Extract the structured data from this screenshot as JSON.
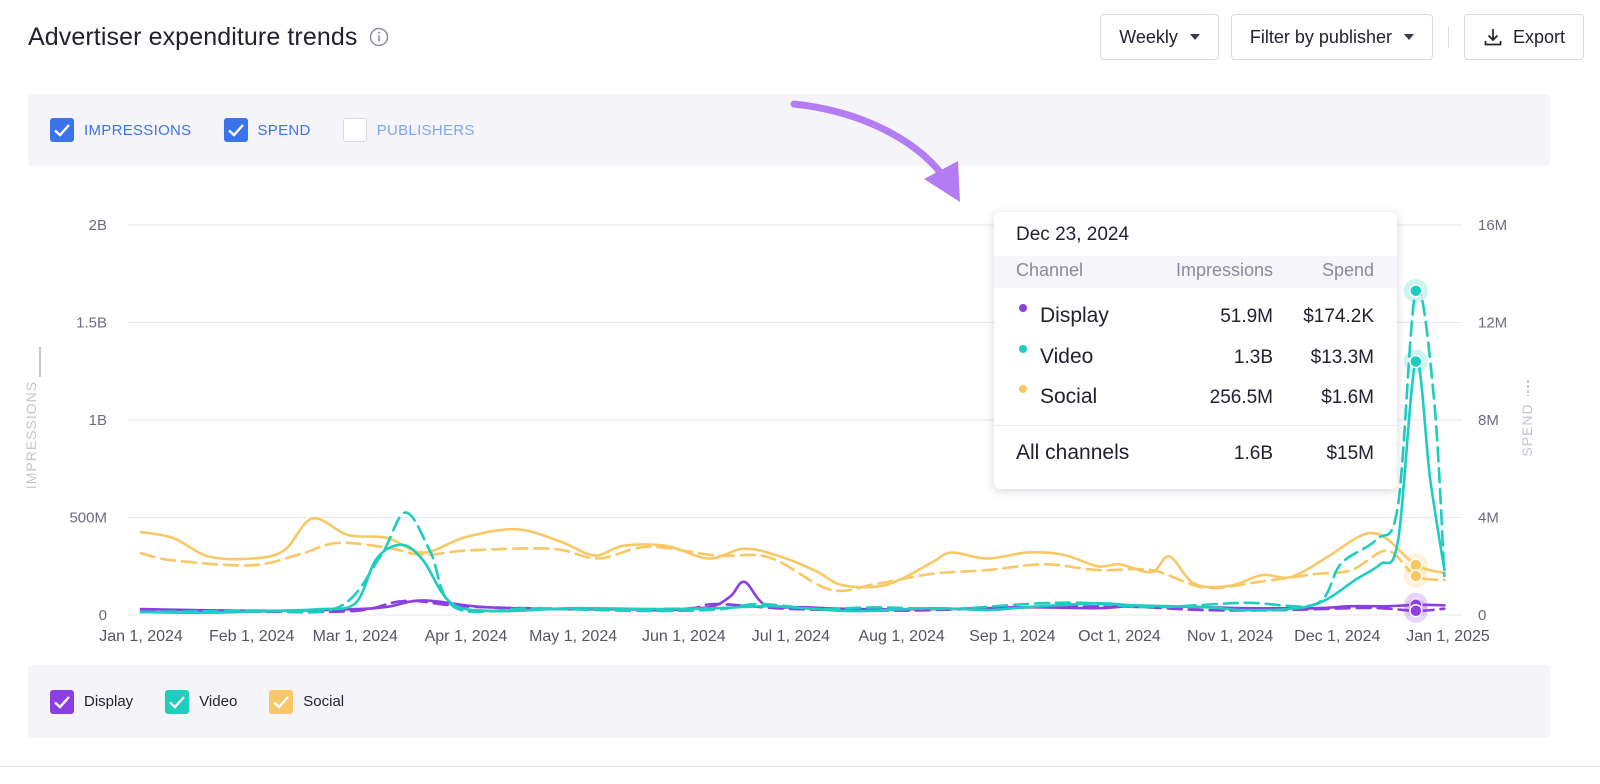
{
  "header": {
    "title": "Advertiser expenditure trends",
    "interval": "Weekly",
    "filter": "Filter by publisher",
    "export": "Export"
  },
  "toggles": [
    {
      "label": "IMPRESSIONS",
      "checked": true,
      "color": "#3b73e8"
    },
    {
      "label": "SPEND",
      "checked": true,
      "color": "#3b73e8"
    },
    {
      "label": "PUBLISHERS",
      "checked": false,
      "color": "#7ea6ee"
    }
  ],
  "legend": [
    {
      "label": "Display",
      "color": "#8c3fe0"
    },
    {
      "label": "Video",
      "color": "#1ccdc0"
    },
    {
      "label": "Social",
      "color": "#f8c866"
    }
  ],
  "tooltip": {
    "date": "Dec 23, 2024",
    "col_channel": "Channel",
    "col_impressions": "Impressions",
    "col_spend": "Spend",
    "rows": [
      {
        "channel": "Display",
        "impressions": "51.9M",
        "spend": "$174.2K",
        "color": "#8c3fe0"
      },
      {
        "channel": "Video",
        "impressions": "1.3B",
        "spend": "$13.3M",
        "color": "#1ccdc0"
      },
      {
        "channel": "Social",
        "impressions": "256.5M",
        "spend": "$1.6M",
        "color": "#f8c866"
      }
    ],
    "total": {
      "channel": "All channels",
      "impressions": "1.6B",
      "spend": "$15M"
    }
  },
  "chart_data": {
    "type": "line",
    "x_range": [
      "2024-01-01",
      "2025-01-01"
    ],
    "x_ticks": [
      "Jan 1, 2024",
      "Feb 1, 2024",
      "Mar 1, 2024",
      "Apr 1, 2024",
      "May 1, 2024",
      "Jun 1, 2024",
      "Jul 1, 2024",
      "Aug 1, 2024",
      "Sep 1, 2024",
      "Oct 1, 2024",
      "Nov 1, 2024",
      "Dec 1, 2024",
      "Jan 1, 2025"
    ],
    "y_left": {
      "label": "IMPRESSIONS",
      "range": [
        0,
        2000000000
      ],
      "ticks": [
        "0",
        "500M",
        "1B",
        "1.5B",
        "2B"
      ]
    },
    "y_right": {
      "label": "SPEND",
      "range": [
        0,
        16000000
      ],
      "ticks": [
        "0",
        "4M",
        "8M",
        "12M",
        "16M"
      ]
    },
    "grid": true,
    "highlight_date": "2024-12-23",
    "series": [
      {
        "name": "Display",
        "metric": "impressions",
        "style": "solid",
        "color": "#8c3fe0",
        "points": [
          [
            "2024-01-01",
            30000000
          ],
          [
            "2024-01-20",
            24000000
          ],
          [
            "2024-02-10",
            22000000
          ],
          [
            "2024-03-01",
            30000000
          ],
          [
            "2024-03-10",
            42000000
          ],
          [
            "2024-03-20",
            75000000
          ],
          [
            "2024-04-05",
            42000000
          ],
          [
            "2024-04-25",
            30000000
          ],
          [
            "2024-05-15",
            30000000
          ],
          [
            "2024-05-25",
            24000000
          ],
          [
            "2024-06-08",
            40000000
          ],
          [
            "2024-06-14",
            95000000
          ],
          [
            "2024-06-18",
            170000000
          ],
          [
            "2024-06-24",
            50000000
          ],
          [
            "2024-07-05",
            40000000
          ],
          [
            "2024-07-20",
            30000000
          ],
          [
            "2024-08-10",
            30000000
          ],
          [
            "2024-08-25",
            35000000
          ],
          [
            "2024-09-05",
            40000000
          ],
          [
            "2024-09-25",
            35000000
          ],
          [
            "2024-10-05",
            45000000
          ],
          [
            "2024-10-25",
            40000000
          ],
          [
            "2024-11-05",
            35000000
          ],
          [
            "2024-11-25",
            35000000
          ],
          [
            "2024-12-05",
            45000000
          ],
          [
            "2024-12-15",
            45000000
          ],
          [
            "2024-12-23",
            51900000
          ],
          [
            "2024-12-31",
            50000000
          ]
        ]
      },
      {
        "name": "Video",
        "metric": "impressions",
        "style": "solid",
        "color": "#1ccdc0",
        "points": [
          [
            "2024-01-01",
            15000000
          ],
          [
            "2024-01-20",
            12000000
          ],
          [
            "2024-02-10",
            22000000
          ],
          [
            "2024-02-20",
            30000000
          ],
          [
            "2024-03-01",
            60000000
          ],
          [
            "2024-03-07",
            290000000
          ],
          [
            "2024-03-14",
            360000000
          ],
          [
            "2024-03-20",
            280000000
          ],
          [
            "2024-03-28",
            60000000
          ],
          [
            "2024-04-10",
            20000000
          ],
          [
            "2024-05-01",
            35000000
          ],
          [
            "2024-05-25",
            30000000
          ],
          [
            "2024-06-10",
            35000000
          ],
          [
            "2024-06-25",
            45000000
          ],
          [
            "2024-07-08",
            30000000
          ],
          [
            "2024-07-20",
            20000000
          ],
          [
            "2024-08-10",
            35000000
          ],
          [
            "2024-08-25",
            25000000
          ],
          [
            "2024-09-05",
            40000000
          ],
          [
            "2024-09-25",
            60000000
          ],
          [
            "2024-10-05",
            50000000
          ],
          [
            "2024-10-25",
            40000000
          ],
          [
            "2024-11-05",
            25000000
          ],
          [
            "2024-11-20",
            35000000
          ],
          [
            "2024-11-28",
            80000000
          ],
          [
            "2024-12-06",
            180000000
          ],
          [
            "2024-12-13",
            260000000
          ],
          [
            "2024-12-18",
            380000000
          ],
          [
            "2024-12-23",
            1300000000
          ],
          [
            "2024-12-27",
            700000000
          ],
          [
            "2024-12-31",
            230000000
          ]
        ]
      },
      {
        "name": "Social",
        "metric": "impressions",
        "style": "solid",
        "color": "#f8c866",
        "points": [
          [
            "2024-01-01",
            425000000
          ],
          [
            "2024-01-10",
            395000000
          ],
          [
            "2024-01-20",
            300000000
          ],
          [
            "2024-02-01",
            290000000
          ],
          [
            "2024-02-10",
            330000000
          ],
          [
            "2024-02-18",
            495000000
          ],
          [
            "2024-02-28",
            410000000
          ],
          [
            "2024-03-10",
            395000000
          ],
          [
            "2024-03-20",
            320000000
          ],
          [
            "2024-04-01",
            400000000
          ],
          [
            "2024-04-15",
            440000000
          ],
          [
            "2024-04-27",
            380000000
          ],
          [
            "2024-05-07",
            305000000
          ],
          [
            "2024-05-15",
            355000000
          ],
          [
            "2024-05-27",
            355000000
          ],
          [
            "2024-06-08",
            290000000
          ],
          [
            "2024-06-18",
            340000000
          ],
          [
            "2024-06-28",
            300000000
          ],
          [
            "2024-07-08",
            225000000
          ],
          [
            "2024-07-15",
            155000000
          ],
          [
            "2024-07-25",
            145000000
          ],
          [
            "2024-08-01",
            185000000
          ],
          [
            "2024-08-10",
            275000000
          ],
          [
            "2024-08-15",
            320000000
          ],
          [
            "2024-08-25",
            290000000
          ],
          [
            "2024-09-05",
            320000000
          ],
          [
            "2024-09-15",
            310000000
          ],
          [
            "2024-09-25",
            250000000
          ],
          [
            "2024-10-01",
            260000000
          ],
          [
            "2024-10-10",
            220000000
          ],
          [
            "2024-10-15",
            300000000
          ],
          [
            "2024-10-22",
            160000000
          ],
          [
            "2024-11-01",
            150000000
          ],
          [
            "2024-11-10",
            205000000
          ],
          [
            "2024-11-18",
            195000000
          ],
          [
            "2024-11-28",
            295000000
          ],
          [
            "2024-12-05",
            380000000
          ],
          [
            "2024-12-10",
            420000000
          ],
          [
            "2024-12-15",
            390000000
          ],
          [
            "2024-12-23",
            256500000
          ],
          [
            "2024-12-31",
            215000000
          ]
        ]
      },
      {
        "name": "Display",
        "metric": "spend",
        "style": "dashed",
        "color": "#8c3fe0",
        "points": [
          [
            "2024-01-01",
            140000
          ],
          [
            "2024-02-01",
            130000
          ],
          [
            "2024-03-01",
            170000
          ],
          [
            "2024-03-15",
            580000
          ],
          [
            "2024-04-01",
            350000
          ],
          [
            "2024-05-01",
            250000
          ],
          [
            "2024-06-01",
            260000
          ],
          [
            "2024-06-10",
            450000
          ],
          [
            "2024-07-01",
            250000
          ],
          [
            "2024-08-01",
            180000
          ],
          [
            "2024-09-01",
            300000
          ],
          [
            "2024-10-01",
            350000
          ],
          [
            "2024-10-25",
            200000
          ],
          [
            "2024-11-15",
            200000
          ],
          [
            "2024-12-10",
            290000
          ],
          [
            "2024-12-23",
            174200
          ],
          [
            "2024-12-31",
            260000
          ]
        ]
      },
      {
        "name": "Video",
        "metric": "spend",
        "style": "dashed",
        "color": "#1ccdc0",
        "points": [
          [
            "2024-01-01",
            120000
          ],
          [
            "2024-02-01",
            180000
          ],
          [
            "2024-02-25",
            300000
          ],
          [
            "2024-03-08",
            2400000
          ],
          [
            "2024-03-15",
            4200000
          ],
          [
            "2024-03-22",
            2600000
          ],
          [
            "2024-03-29",
            300000
          ],
          [
            "2024-04-20",
            270000
          ],
          [
            "2024-05-20",
            170000
          ],
          [
            "2024-06-10",
            220000
          ],
          [
            "2024-06-22",
            450000
          ],
          [
            "2024-07-08",
            250000
          ],
          [
            "2024-07-25",
            310000
          ],
          [
            "2024-08-15",
            250000
          ],
          [
            "2024-09-05",
            450000
          ],
          [
            "2024-09-20",
            500000
          ],
          [
            "2024-10-10",
            320000
          ],
          [
            "2024-11-05",
            500000
          ],
          [
            "2024-11-25",
            450000
          ],
          [
            "2024-12-02",
            2100000
          ],
          [
            "2024-12-12",
            3100000
          ],
          [
            "2024-12-18",
            4500000
          ],
          [
            "2024-12-23",
            13300000
          ],
          [
            "2024-12-28",
            9000000
          ],
          [
            "2024-12-31",
            1600000
          ]
        ]
      },
      {
        "name": "Social",
        "metric": "spend",
        "style": "dashed",
        "color": "#f8c866",
        "points": [
          [
            "2024-01-01",
            2540000
          ],
          [
            "2024-01-10",
            2240000
          ],
          [
            "2024-02-01",
            2040000
          ],
          [
            "2024-02-15",
            2520000
          ],
          [
            "2024-02-25",
            2960000
          ],
          [
            "2024-03-10",
            2760000
          ],
          [
            "2024-03-20",
            2460000
          ],
          [
            "2024-04-01",
            2640000
          ],
          [
            "2024-04-25",
            2720000
          ],
          [
            "2024-05-08",
            2320000
          ],
          [
            "2024-05-22",
            2800000
          ],
          [
            "2024-06-10",
            2440000
          ],
          [
            "2024-06-25",
            2360000
          ],
          [
            "2024-07-12",
            1040000
          ],
          [
            "2024-07-25",
            1280000
          ],
          [
            "2024-08-10",
            1700000
          ],
          [
            "2024-08-25",
            1840000
          ],
          [
            "2024-09-10",
            2080000
          ],
          [
            "2024-09-25",
            1840000
          ],
          [
            "2024-10-10",
            1840000
          ],
          [
            "2024-10-25",
            1120000
          ],
          [
            "2024-11-10",
            1380000
          ],
          [
            "2024-11-25",
            1680000
          ],
          [
            "2024-12-05",
            1840000
          ],
          [
            "2024-12-15",
            2640000
          ],
          [
            "2024-12-23",
            1600000
          ],
          [
            "2024-12-31",
            1440000
          ]
        ]
      }
    ]
  }
}
